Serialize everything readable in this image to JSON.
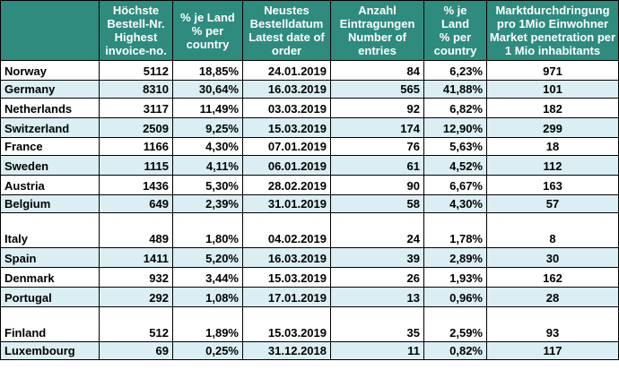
{
  "headers": [
    {
      "id": "blank",
      "lines": [
        ""
      ]
    },
    {
      "id": "invoice",
      "lines": [
        "Höchste",
        "Bestell-Nr.",
        "Highest",
        "invoice-no."
      ]
    },
    {
      "id": "share_invoice",
      "lines": [
        "% je Land",
        "% per",
        "country"
      ]
    },
    {
      "id": "latest_date",
      "lines": [
        "Neustes",
        "Bestelldatum",
        "Latest date of",
        "order"
      ]
    },
    {
      "id": "entries",
      "lines": [
        "Anzahl",
        "Eintragungen",
        "Number of",
        "entries"
      ]
    },
    {
      "id": "share_entries",
      "lines": [
        "% je",
        "Land",
        "% per",
        "country"
      ]
    },
    {
      "id": "penetration",
      "lines": [
        "Marktdurchdringung",
        "pro 1Mio Einwohner",
        "Market penetration per",
        "1 Mio inhabitants"
      ]
    }
  ],
  "rows": [
    {
      "country": "Norway",
      "invoice": "5112",
      "share_invoice": "18,85%",
      "latest_date": "24.01.2019",
      "entries": "84",
      "share_entries": "6,23%",
      "penetration": "971",
      "style": "plain",
      "height": "tall"
    },
    {
      "country": "Germany",
      "invoice": "8310",
      "share_invoice": "30,64%",
      "latest_date": "16.03.2019",
      "entries": "565",
      "share_entries": "41,88%",
      "penetration": "101",
      "style": "alt",
      "height": "short"
    },
    {
      "country": "Netherlands",
      "invoice": "3117",
      "share_invoice": "11,49%",
      "latest_date": "03.03.2019",
      "entries": "92",
      "share_entries": "6,82%",
      "penetration": "182",
      "style": "plain",
      "height": "tall"
    },
    {
      "country": "Switzerland",
      "invoice": "2509",
      "share_invoice": "9,25%",
      "latest_date": "15.03.2019",
      "entries": "174",
      "share_entries": "12,90%",
      "penetration": "299",
      "style": "alt",
      "height": "tall"
    },
    {
      "country": "France",
      "invoice": "1166",
      "share_invoice": "4,30%",
      "latest_date": "07.01.2019",
      "entries": "76",
      "share_entries": "5,63%",
      "penetration": "18",
      "style": "plain",
      "height": "short"
    },
    {
      "country": "Sweden",
      "invoice": "1115",
      "share_invoice": "4,11%",
      "latest_date": "06.01.2019",
      "entries": "61",
      "share_entries": "4,52%",
      "penetration": "112",
      "style": "alt",
      "height": "tall"
    },
    {
      "country": "Austria",
      "invoice": "1436",
      "share_invoice": "5,30%",
      "latest_date": "28.02.2019",
      "entries": "90",
      "share_entries": "6,67%",
      "penetration": "163",
      "style": "plain",
      "height": "tall"
    },
    {
      "country": "Belgium",
      "invoice": "649",
      "share_invoice": "2,39%",
      "latest_date": "31.01.2019",
      "entries": "58",
      "share_entries": "4,30%",
      "penetration": "57",
      "style": "alt",
      "height": "short"
    },
    {
      "country": "Italy",
      "invoice": "489",
      "share_invoice": "1,80%",
      "latest_date": "04.02.2019",
      "entries": "24",
      "share_entries": "1,78%",
      "penetration": "8",
      "style": "plain",
      "height": "xtall"
    },
    {
      "country": "Spain",
      "invoice": "1411",
      "share_invoice": "5,20%",
      "latest_date": "16.03.2019",
      "entries": "39",
      "share_entries": "2,89%",
      "penetration": "30",
      "style": "alt",
      "height": "tall"
    },
    {
      "country": "Denmark",
      "invoice": "932",
      "share_invoice": "3,44%",
      "latest_date": "15.03.2019",
      "entries": "26",
      "share_entries": "1,93%",
      "penetration": "162",
      "style": "plain",
      "height": "tall"
    },
    {
      "country": "Portugal",
      "invoice": "292",
      "share_invoice": "1,08%",
      "latest_date": "17.01.2019",
      "entries": "13",
      "share_entries": "0,96%",
      "penetration": "28",
      "style": "alt",
      "height": "tall"
    },
    {
      "country": "Finland",
      "invoice": "512",
      "share_invoice": "1,89%",
      "latest_date": "15.03.2019",
      "entries": "35",
      "share_entries": "2,59%",
      "penetration": "93",
      "style": "plain",
      "height": "xtall"
    },
    {
      "country": "Luxembourg",
      "invoice": "69",
      "share_invoice": "0,25%",
      "latest_date": "31.12.2018",
      "entries": "11",
      "share_entries": "0,82%",
      "penetration": "117",
      "style": "alt",
      "height": "short"
    }
  ],
  "colors": {
    "header_bg": "#2e8b7e",
    "header_text": "#ffffff",
    "alt_row_bg": "#daeef3",
    "border": "#000000"
  }
}
